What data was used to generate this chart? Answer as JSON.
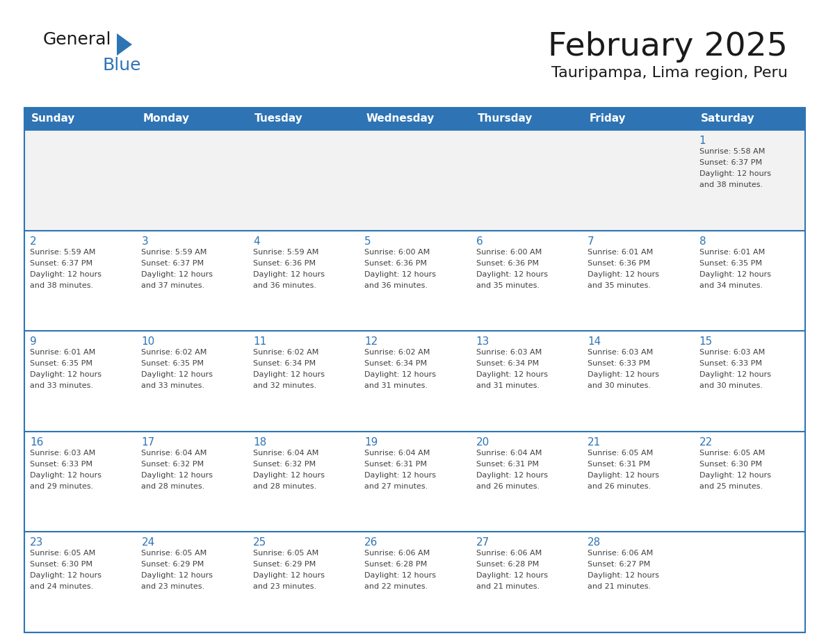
{
  "title": "February 2025",
  "subtitle": "Tauripampa, Lima region, Peru",
  "days_of_week": [
    "Sunday",
    "Monday",
    "Tuesday",
    "Wednesday",
    "Thursday",
    "Friday",
    "Saturday"
  ],
  "header_bg": "#2E74B5",
  "header_text_color": "#FFFFFF",
  "cell_bg_white": "#FFFFFF",
  "cell_bg_gray": "#F2F2F2",
  "grid_line_color": "#2E74B5",
  "day_number_color": "#2E74B5",
  "cell_text_color": "#404040",
  "title_color": "#1a1a1a",
  "logo_text_color": "#1a1a1a",
  "logo_blue_color": "#2E74B5",
  "calendar_data": [
    {
      "day": 1,
      "col": 6,
      "row": 0,
      "sunrise": "5:58 AM",
      "sunset": "6:37 PM",
      "daylight_mins": "38 minutes."
    },
    {
      "day": 2,
      "col": 0,
      "row": 1,
      "sunrise": "5:59 AM",
      "sunset": "6:37 PM",
      "daylight_mins": "38 minutes."
    },
    {
      "day": 3,
      "col": 1,
      "row": 1,
      "sunrise": "5:59 AM",
      "sunset": "6:37 PM",
      "daylight_mins": "37 minutes."
    },
    {
      "day": 4,
      "col": 2,
      "row": 1,
      "sunrise": "5:59 AM",
      "sunset": "6:36 PM",
      "daylight_mins": "36 minutes."
    },
    {
      "day": 5,
      "col": 3,
      "row": 1,
      "sunrise": "6:00 AM",
      "sunset": "6:36 PM",
      "daylight_mins": "36 minutes."
    },
    {
      "day": 6,
      "col": 4,
      "row": 1,
      "sunrise": "6:00 AM",
      "sunset": "6:36 PM",
      "daylight_mins": "35 minutes."
    },
    {
      "day": 7,
      "col": 5,
      "row": 1,
      "sunrise": "6:01 AM",
      "sunset": "6:36 PM",
      "daylight_mins": "35 minutes."
    },
    {
      "day": 8,
      "col": 6,
      "row": 1,
      "sunrise": "6:01 AM",
      "sunset": "6:35 PM",
      "daylight_mins": "34 minutes."
    },
    {
      "day": 9,
      "col": 0,
      "row": 2,
      "sunrise": "6:01 AM",
      "sunset": "6:35 PM",
      "daylight_mins": "33 minutes."
    },
    {
      "day": 10,
      "col": 1,
      "row": 2,
      "sunrise": "6:02 AM",
      "sunset": "6:35 PM",
      "daylight_mins": "33 minutes."
    },
    {
      "day": 11,
      "col": 2,
      "row": 2,
      "sunrise": "6:02 AM",
      "sunset": "6:34 PM",
      "daylight_mins": "32 minutes."
    },
    {
      "day": 12,
      "col": 3,
      "row": 2,
      "sunrise": "6:02 AM",
      "sunset": "6:34 PM",
      "daylight_mins": "31 minutes."
    },
    {
      "day": 13,
      "col": 4,
      "row": 2,
      "sunrise": "6:03 AM",
      "sunset": "6:34 PM",
      "daylight_mins": "31 minutes."
    },
    {
      "day": 14,
      "col": 5,
      "row": 2,
      "sunrise": "6:03 AM",
      "sunset": "6:33 PM",
      "daylight_mins": "30 minutes."
    },
    {
      "day": 15,
      "col": 6,
      "row": 2,
      "sunrise": "6:03 AM",
      "sunset": "6:33 PM",
      "daylight_mins": "30 minutes."
    },
    {
      "day": 16,
      "col": 0,
      "row": 3,
      "sunrise": "6:03 AM",
      "sunset": "6:33 PM",
      "daylight_mins": "29 minutes."
    },
    {
      "day": 17,
      "col": 1,
      "row": 3,
      "sunrise": "6:04 AM",
      "sunset": "6:32 PM",
      "daylight_mins": "28 minutes."
    },
    {
      "day": 18,
      "col": 2,
      "row": 3,
      "sunrise": "6:04 AM",
      "sunset": "6:32 PM",
      "daylight_mins": "28 minutes."
    },
    {
      "day": 19,
      "col": 3,
      "row": 3,
      "sunrise": "6:04 AM",
      "sunset": "6:31 PM",
      "daylight_mins": "27 minutes."
    },
    {
      "day": 20,
      "col": 4,
      "row": 3,
      "sunrise": "6:04 AM",
      "sunset": "6:31 PM",
      "daylight_mins": "26 minutes."
    },
    {
      "day": 21,
      "col": 5,
      "row": 3,
      "sunrise": "6:05 AM",
      "sunset": "6:31 PM",
      "daylight_mins": "26 minutes."
    },
    {
      "day": 22,
      "col": 6,
      "row": 3,
      "sunrise": "6:05 AM",
      "sunset": "6:30 PM",
      "daylight_mins": "25 minutes."
    },
    {
      "day": 23,
      "col": 0,
      "row": 4,
      "sunrise": "6:05 AM",
      "sunset": "6:30 PM",
      "daylight_mins": "24 minutes."
    },
    {
      "day": 24,
      "col": 1,
      "row": 4,
      "sunrise": "6:05 AM",
      "sunset": "6:29 PM",
      "daylight_mins": "23 minutes."
    },
    {
      "day": 25,
      "col": 2,
      "row": 4,
      "sunrise": "6:05 AM",
      "sunset": "6:29 PM",
      "daylight_mins": "23 minutes."
    },
    {
      "day": 26,
      "col": 3,
      "row": 4,
      "sunrise": "6:06 AM",
      "sunset": "6:28 PM",
      "daylight_mins": "22 minutes."
    },
    {
      "day": 27,
      "col": 4,
      "row": 4,
      "sunrise": "6:06 AM",
      "sunset": "6:28 PM",
      "daylight_mins": "21 minutes."
    },
    {
      "day": 28,
      "col": 5,
      "row": 4,
      "sunrise": "6:06 AM",
      "sunset": "6:27 PM",
      "daylight_mins": "21 minutes."
    }
  ]
}
